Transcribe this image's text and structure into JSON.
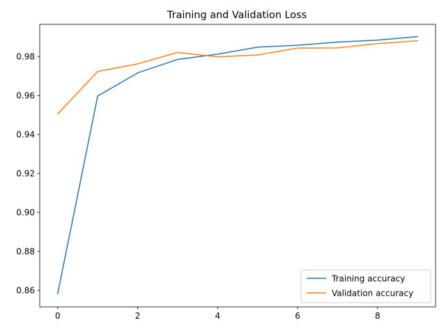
{
  "chart_data": {
    "type": "line",
    "title": "Training and Validation Loss",
    "xlabel": "",
    "ylabel": "",
    "x": [
      0,
      1,
      2,
      3,
      4,
      5,
      6,
      7,
      8,
      9
    ],
    "xlim": [
      -0.45,
      9.45
    ],
    "ylim": [
      0.8515,
      0.9965
    ],
    "xticks": [
      0,
      2,
      4,
      6,
      8
    ],
    "yticks": [
      0.86,
      0.88,
      0.9,
      0.92,
      0.94,
      0.96,
      0.98
    ],
    "grid": false,
    "legend_position": "lower-right",
    "series": [
      {
        "name": "Training accuracy",
        "color": "#1f77b4",
        "values": [
          0.8583,
          0.9597,
          0.9716,
          0.9785,
          0.9812,
          0.9848,
          0.9858,
          0.9874,
          0.9884,
          0.9902
        ]
      },
      {
        "name": "Validation accuracy",
        "color": "#ff7f0e",
        "values": [
          0.9505,
          0.9723,
          0.9762,
          0.9821,
          0.9798,
          0.9808,
          0.9843,
          0.9844,
          0.9866,
          0.9881
        ]
      }
    ]
  }
}
